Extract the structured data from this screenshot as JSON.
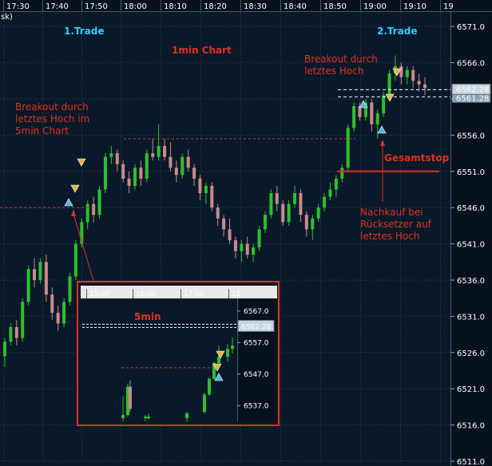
{
  "chart_data": {
    "type": "candlestick",
    "title": "1min Chart",
    "time_ticks": [
      "17:30",
      "17:40",
      "17:50",
      "18:00",
      "18:10",
      "18:20",
      "18:30",
      "18:40",
      "18:50",
      "19:00",
      "19:10",
      "19"
    ],
    "price_ticks": [
      "6571.0",
      "6566.0",
      "6561.0",
      "6556.0",
      "6551.0",
      "6546.0",
      "6541.0",
      "6536.0",
      "6531.0",
      "6526.0",
      "6521.0",
      "6516.0",
      "6511.0"
    ],
    "ylim": [
      6511,
      6573
    ],
    "price_labels": {
      "current": "6562.28",
      "secondary": "6561.28"
    },
    "corner_label": "sk)",
    "colors": {
      "background": "#0a1929",
      "grid": "#2a4257",
      "bull": "#2fbf2f",
      "bear": "#c98a8a",
      "annotation": "#e03020",
      "trade_label": "#33ccff",
      "buy_marker": "#5ab0e8",
      "sell_marker": "#e8b040"
    },
    "annotations": {
      "trade1": "1.Trade",
      "trade2": "2.Trade",
      "chart_title": "1min Chart",
      "breakout_5min": [
        "Breakout durch",
        "letztes Hoch im",
        "5min Chart"
      ],
      "breakout_last": [
        "Breakout durch",
        "letztes Hoch"
      ],
      "gesamtstop": "Gesamtstop",
      "nachkauf": [
        "Nachkauf bei",
        "Rücksetzer auf",
        "letztes Hoch"
      ]
    },
    "inset": {
      "title": "5min",
      "time_ticks": [
        "15:00",
        "16:00",
        "17:00",
        "18"
      ],
      "price_ticks": [
        "6567.0",
        "6557.0",
        "6547.0",
        "6537.0"
      ],
      "price_label": "6562.28",
      "ylim": [
        6532,
        6571
      ]
    },
    "candles": [
      [
        6525.5,
        6528.0,
        6524.0,
        6527.5
      ],
      [
        6527.5,
        6530.0,
        6527.0,
        6529.5
      ],
      [
        6529.5,
        6530.5,
        6527.0,
        6528.0
      ],
      [
        6528.0,
        6533.5,
        6527.5,
        6533.0
      ],
      [
        6533.0,
        6538.0,
        6532.5,
        6537.5
      ],
      [
        6537.5,
        6539.0,
        6535.0,
        6536.0
      ],
      [
        6536.0,
        6539.0,
        6535.5,
        6538.5
      ],
      [
        6538.5,
        6539.5,
        6533.0,
        6534.0
      ],
      [
        6534.0,
        6535.0,
        6530.5,
        6531.5
      ],
      [
        6531.5,
        6532.5,
        6529.0,
        6530.0
      ],
      [
        6530.0,
        6533.5,
        6529.5,
        6533.0
      ],
      [
        6533.0,
        6537.0,
        6532.5,
        6536.5
      ],
      [
        6536.5,
        6541.5,
        6536.0,
        6541.0
      ],
      [
        6541.0,
        6544.5,
        6540.5,
        6544.0
      ],
      [
        6544.0,
        6547.0,
        6543.0,
        6546.5
      ],
      [
        6546.5,
        6547.5,
        6544.0,
        6545.0
      ],
      [
        6545.0,
        6549.0,
        6544.5,
        6548.5
      ],
      [
        6548.5,
        6553.5,
        6548.0,
        6553.0
      ],
      [
        6553.0,
        6554.5,
        6552.0,
        6553.5
      ],
      [
        6553.5,
        6554.0,
        6551.0,
        6552.0
      ],
      [
        6552.0,
        6552.5,
        6549.5,
        6550.0
      ],
      [
        6550.0,
        6551.0,
        6548.0,
        6549.0
      ],
      [
        6549.0,
        6552.0,
        6548.5,
        6551.5
      ],
      [
        6551.5,
        6552.5,
        6549.0,
        6550.0
      ],
      [
        6550.0,
        6554.0,
        6549.5,
        6553.5
      ],
      [
        6553.5,
        6555.5,
        6552.5,
        6553.0
      ],
      [
        6553.0,
        6557.5,
        6552.5,
        6554.5
      ],
      [
        6554.5,
        6555.5,
        6552.5,
        6553.0
      ],
      [
        6553.0,
        6555.0,
        6551.0,
        6551.5
      ],
      [
        6551.5,
        6552.5,
        6549.5,
        6550.5
      ],
      [
        6550.5,
        6553.5,
        6550.0,
        6553.0
      ],
      [
        6553.0,
        6554.0,
        6551.0,
        6551.5
      ],
      [
        6551.5,
        6552.0,
        6549.0,
        6550.0
      ],
      [
        6550.0,
        6550.5,
        6547.0,
        6548.0
      ],
      [
        6548.0,
        6549.5,
        6546.5,
        6549.0
      ],
      [
        6549.0,
        6549.5,
        6545.5,
        6546.0
      ],
      [
        6546.0,
        6546.5,
        6543.5,
        6544.5
      ],
      [
        6544.5,
        6545.0,
        6542.0,
        6543.0
      ],
      [
        6543.0,
        6544.5,
        6541.0,
        6541.5
      ],
      [
        6541.5,
        6542.0,
        6539.0,
        6540.0
      ],
      [
        6540.0,
        6541.5,
        6538.5,
        6541.0
      ],
      [
        6541.0,
        6542.0,
        6539.0,
        6539.5
      ],
      [
        6539.5,
        6541.0,
        6538.5,
        6540.5
      ],
      [
        6540.5,
        6543.5,
        6540.0,
        6543.0
      ],
      [
        6543.0,
        6545.5,
        6542.5,
        6545.0
      ],
      [
        6545.0,
        6548.5,
        6544.5,
        6548.0
      ],
      [
        6548.0,
        6549.0,
        6545.5,
        6546.5
      ],
      [
        6546.5,
        6547.0,
        6543.5,
        6544.0
      ],
      [
        6544.0,
        6547.0,
        6543.5,
        6546.5
      ],
      [
        6546.5,
        6549.0,
        6546.0,
        6548.0
      ],
      [
        6548.0,
        6548.5,
        6544.0,
        6545.0
      ],
      [
        6545.0,
        6545.5,
        6542.0,
        6543.0
      ],
      [
        6543.0,
        6545.0,
        6541.5,
        6544.5
      ],
      [
        6544.5,
        6546.5,
        6544.0,
        6546.0
      ],
      [
        6546.0,
        6548.0,
        6545.5,
        6547.5
      ],
      [
        6547.5,
        6549.5,
        6547.0,
        6548.5
      ],
      [
        6548.5,
        6550.5,
        6547.5,
        6550.0
      ],
      [
        6550.0,
        6552.0,
        6549.5,
        6551.5
      ],
      [
        6551.5,
        6557.5,
        6551.0,
        6557.0
      ],
      [
        6557.0,
        6560.5,
        6556.5,
        6560.0
      ],
      [
        6560.0,
        6560.5,
        6558.0,
        6558.5
      ],
      [
        6558.5,
        6561.0,
        6558.0,
        6560.5
      ],
      [
        6560.5,
        6561.0,
        6556.5,
        6557.5
      ],
      [
        6557.5,
        6559.5,
        6555.5,
        6559.0
      ],
      [
        6559.0,
        6562.0,
        6558.5,
        6561.5
      ],
      [
        6561.5,
        6565.0,
        6561.0,
        6564.5
      ],
      [
        6564.5,
        6567.0,
        6563.5,
        6565.5
      ],
      [
        6565.5,
        6566.0,
        6563.0,
        6564.0
      ],
      [
        6564.0,
        6565.5,
        6563.0,
        6565.0
      ],
      [
        6565.0,
        6565.5,
        6562.5,
        6563.5
      ],
      [
        6563.5,
        6564.5,
        6562.0,
        6563.0
      ],
      [
        6563.0,
        6564.0,
        6561.5,
        6562.5
      ]
    ],
    "inset_candles": [
      [
        6533.0,
        6540.0,
        6532.0,
        6534.0
      ],
      [
        6534.0,
        6544.0,
        6533.5,
        6543.0
      ],
      [
        6543.0,
        6545.0,
        6535.0,
        6536.0
      ],
      [
        6533.0,
        6534.0,
        6532.0,
        6533.5
      ],
      [
        6533.0,
        6534.5,
        6532.5,
        6533.5
      ],
      [
        6533.0,
        6535.0,
        6532.0,
        6534.5
      ],
      [
        6535.0,
        6541.0,
        6534.5,
        6540.5
      ],
      [
        6540.5,
        6546.0,
        6540.0,
        6545.5
      ],
      [
        6545.5,
        6551.0,
        6545.0,
        6550.5
      ],
      [
        6550.5,
        6556.0,
        6550.0,
        6552.5
      ],
      [
        6552.5,
        6556.5,
        6551.0,
        6555.0
      ],
      [
        6555.0,
        6558.5,
        6553.5,
        6556.0
      ]
    ]
  }
}
